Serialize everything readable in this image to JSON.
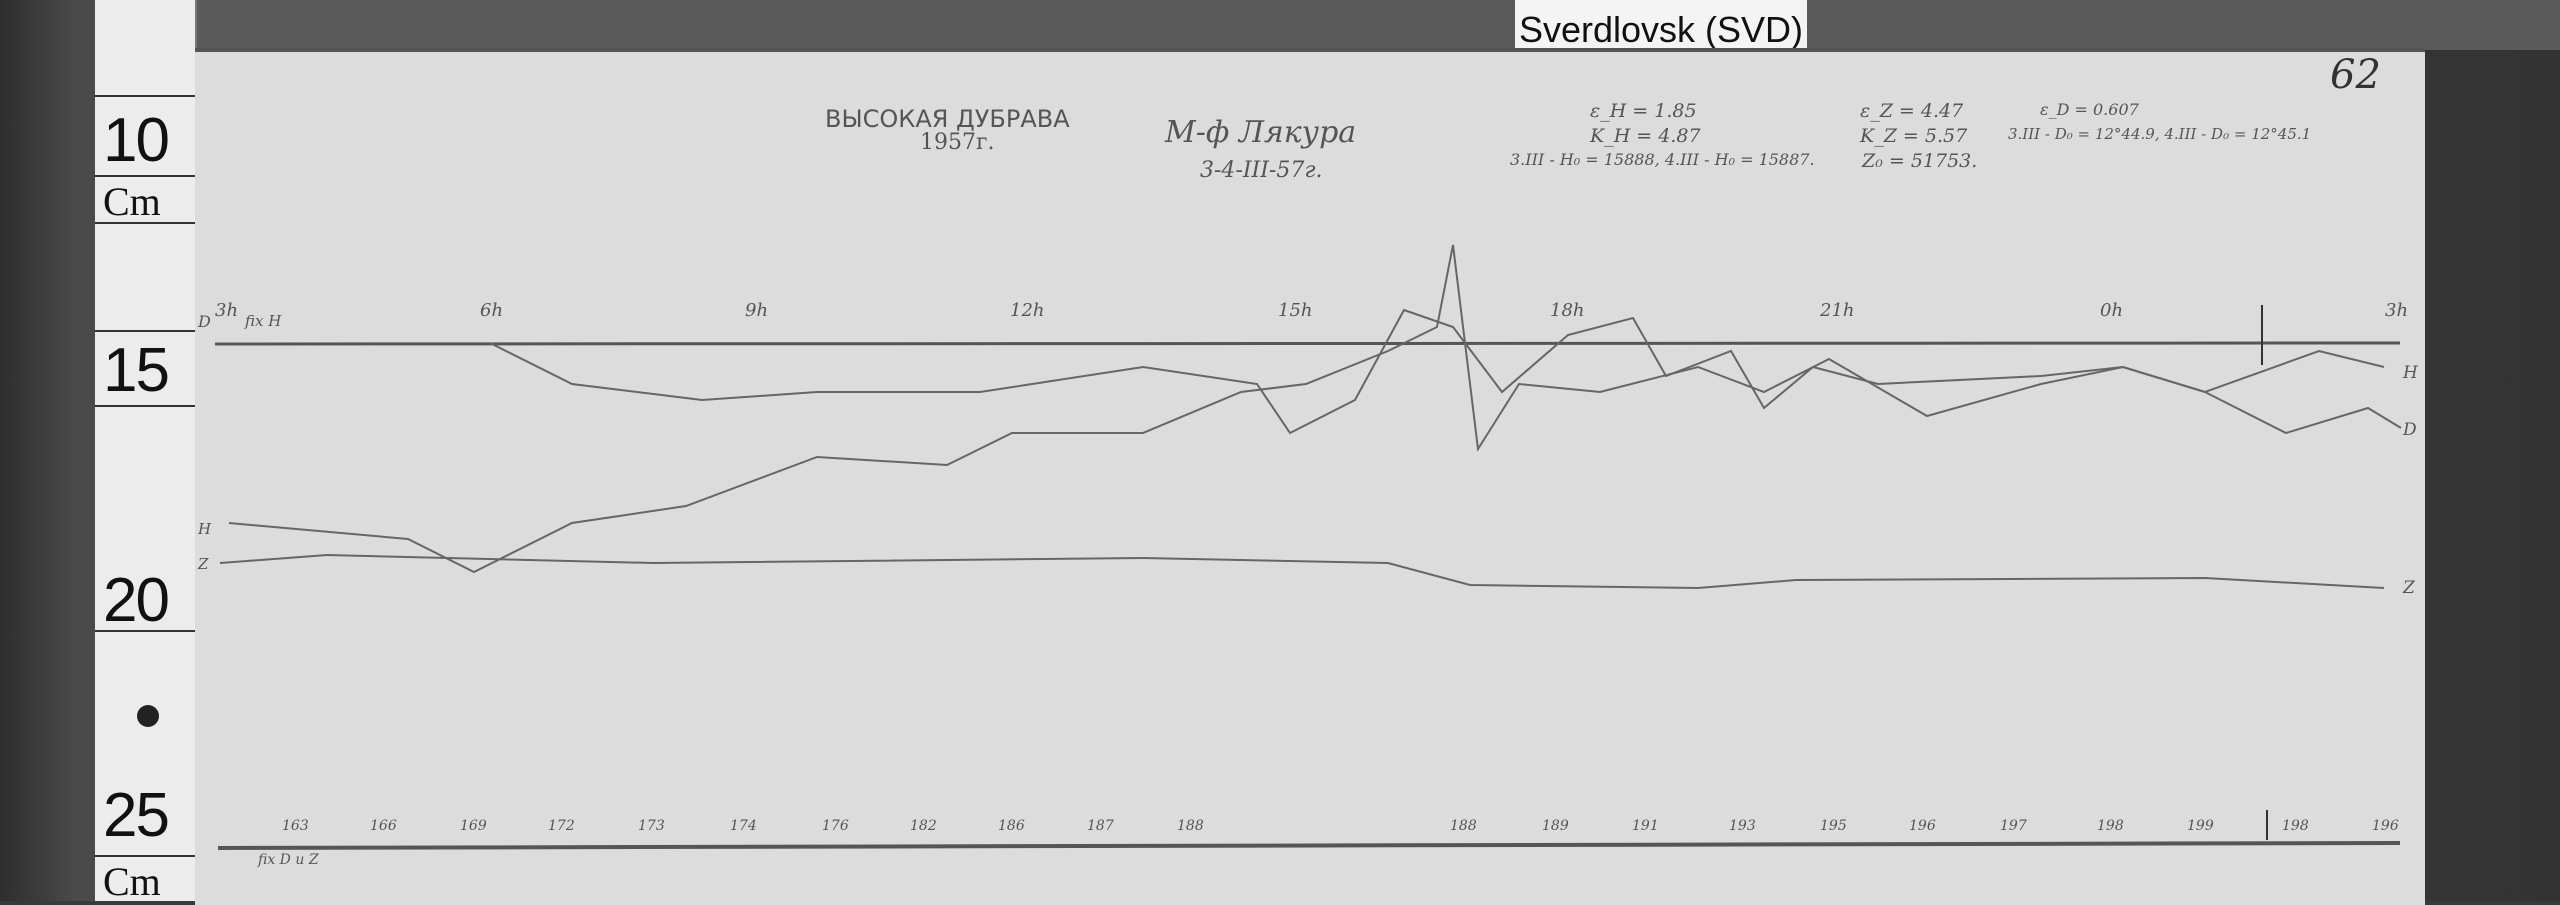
{
  "station_tag": "Sverdlovsk (SVD)",
  "sheet_number": "62",
  "ruler": {
    "labels": [
      "10",
      "Cm",
      "15",
      "20",
      "25",
      "Cm"
    ]
  },
  "header": {
    "station_name": "ВЫСОКАЯ ДУБРАВА",
    "year": "1957г.",
    "instrument": "М-ф Лякура",
    "dates": "3-4-III-57г.",
    "scale_values_h": [
      "ε_H = 1.85",
      "K_H = 4.87",
      "3.III - H₀ = 15888,  4.III - H₀ = 15887."
    ],
    "scale_values_z": [
      "ε_Z = 4.47",
      "K_Z = 5.57",
      "Z₀ = 51753."
    ],
    "scale_values_d": [
      "ε_D = 0.607",
      "3.III - D₀ = 12°44.9,  4.III - D₀ = 12°45.1"
    ]
  },
  "hour_marks": [
    "3h",
    "6h",
    "9h",
    "12h",
    "15h",
    "18h",
    "21h",
    "0h",
    "3h"
  ],
  "trace_labels": {
    "left_d": "D",
    "left_h": "H",
    "left_z": "Z",
    "right_h": "H",
    "right_d": "D",
    "right_z": "Z"
  },
  "notes": {
    "fix_top": "fix H",
    "fix_bottom": "fix D и Z"
  },
  "temperature_readings": [
    "163",
    "166",
    "169",
    "172",
    "173",
    "174",
    "176",
    "182",
    "186",
    "187",
    "188",
    "188",
    "189",
    "191",
    "193",
    "195",
    "196",
    "197",
    "198",
    "199",
    "198",
    "196"
  ]
}
